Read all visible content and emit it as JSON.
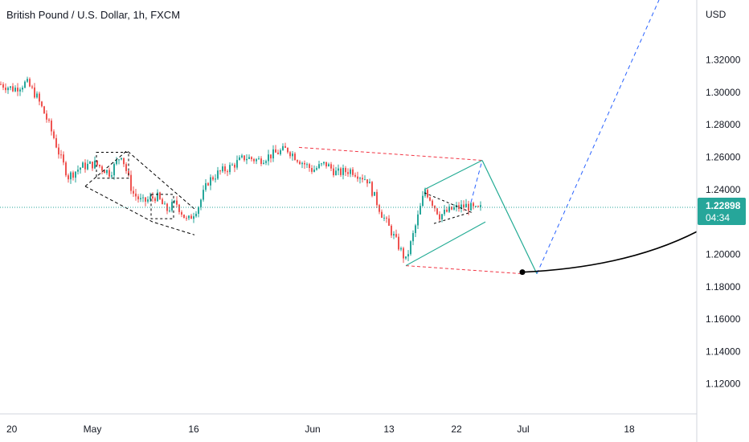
{
  "header": {
    "title": "British Pound / U.S. Dollar, 1h, FXCM"
  },
  "chart_data": {
    "type": "candlestick",
    "symbol": "British Pound / U.S. Dollar",
    "interval": "1h",
    "source": "FXCM",
    "y_axis": {
      "unit": "USD",
      "ticks": [
        "1.32000",
        "1.30000",
        "1.28000",
        "1.26000",
        "1.24000",
        "1.22000",
        "1.20000",
        "1.18000",
        "1.16000",
        "1.14000",
        "1.12000"
      ],
      "range": [
        1.104,
        1.354
      ]
    },
    "x_axis": {
      "ticks": [
        "20",
        "May",
        "16",
        "Jun",
        "13",
        "22",
        "Jul",
        "18"
      ]
    },
    "last_price": {
      "value": "1.22898",
      "countdown": "04:34"
    },
    "price_path": [
      [
        "20",
        1.305
      ],
      [
        "",
        1.302
      ],
      [
        "",
        1.306
      ],
      [
        "",
        1.298
      ],
      [
        "",
        1.285
      ],
      [
        "",
        1.272
      ],
      [
        "",
        1.26
      ],
      [
        "",
        1.248
      ],
      [
        "",
        1.254
      ],
      [
        "May",
        1.256
      ],
      [
        "",
        1.25
      ],
      [
        "",
        1.262
      ],
      [
        "",
        1.238
      ],
      [
        "",
        1.232
      ],
      [
        "",
        1.236
      ],
      [
        "",
        1.227
      ],
      [
        "",
        1.232
      ],
      [
        "",
        1.22
      ],
      [
        "16",
        1.23
      ],
      [
        "",
        1.245
      ],
      [
        "",
        1.25
      ],
      [
        "",
        1.254
      ],
      [
        "",
        1.26
      ],
      [
        "",
        1.258
      ],
      [
        "",
        1.262
      ],
      [
        "",
        1.265
      ],
      [
        "Jun",
        1.258
      ],
      [
        "",
        1.252
      ],
      [
        "",
        1.256
      ],
      [
        "",
        1.25
      ],
      [
        "",
        1.252
      ],
      [
        "",
        1.246
      ],
      [
        "",
        1.225
      ],
      [
        "13",
        1.212
      ],
      [
        "",
        1.196
      ],
      [
        "",
        1.21
      ],
      [
        "",
        1.24
      ],
      [
        "",
        1.224
      ],
      [
        "",
        1.228
      ],
      [
        "22",
        1.23
      ],
      [
        "",
        1.227
      ],
      [
        "",
        1.229
      ]
    ],
    "annotations": {
      "resistance_line": {
        "from": [
          "Jun",
          1.266
        ],
        "to": [
          "22",
          1.258
        ],
        "color": "#f23645",
        "style": "dashed"
      },
      "support_line": {
        "from": [
          "13",
          1.193
        ],
        "to": [
          "Jul",
          1.19
        ],
        "color": "#f23645",
        "style": "dashed"
      },
      "projection": {
        "points": [
          [
            "22",
            1.258
          ],
          [
            "Jul",
            1.19
          ]
        ],
        "color": "#22ab94"
      },
      "projection_up": {
        "from": [
          "Jul",
          1.19
        ],
        "to": [
          "18",
          1.358
        ],
        "color": "#2962ff",
        "style": "dashed"
      },
      "curve": {
        "from": [
          "Jul",
          1.19
        ],
        "to": [
          "18",
          1.214
        ],
        "color": "#000000"
      },
      "triangle_color": "#22ab94",
      "wedge_color": "#000000"
    },
    "colors": {
      "up": "#26a69a",
      "down": "#ef5350",
      "last_price": "#26a69a",
      "grid": false
    }
  }
}
